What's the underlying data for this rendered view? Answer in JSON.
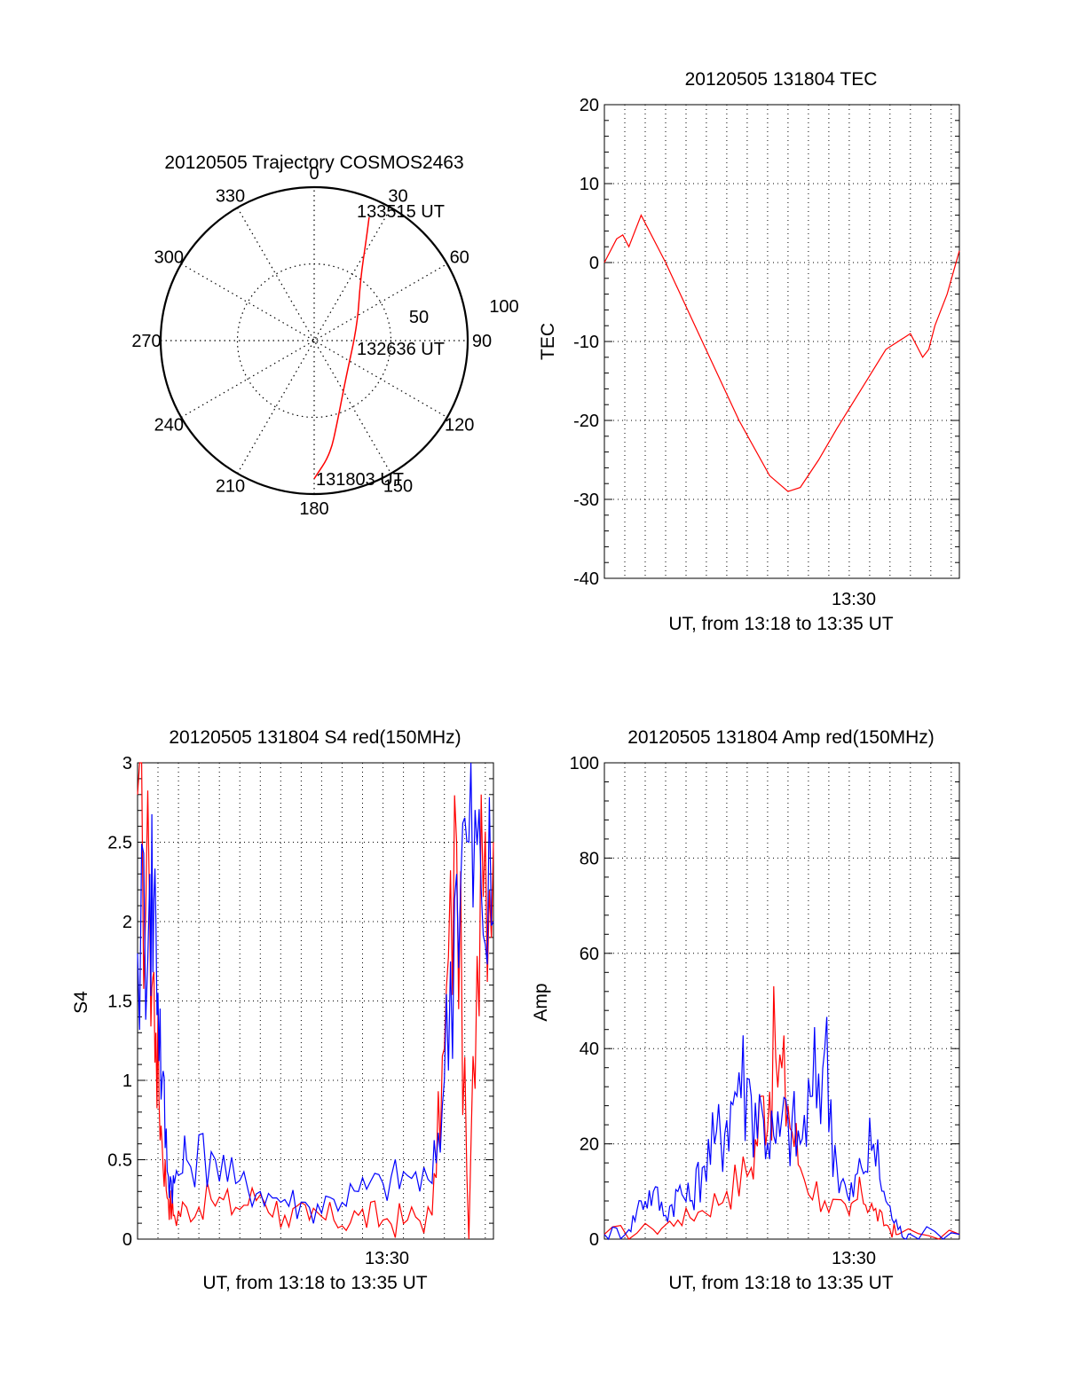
{
  "chart_data": [
    {
      "type": "polar",
      "title": "20120505 Trajectory COSMOS2463",
      "angle_labels": [
        "0",
        "30",
        "60",
        "90",
        "120",
        "150",
        "180",
        "210",
        "240",
        "270",
        "300",
        "330"
      ],
      "radius_labels": [
        "50",
        "100"
      ],
      "rlim": [
        0,
        100
      ],
      "grid": true,
      "series": [
        {
          "color": "#ff0000",
          "points": [
            {
              "az": 180,
              "r": 90
            },
            {
              "az": 172,
              "r": 75
            },
            {
              "az": 164,
              "r": 55
            },
            {
              "az": 140,
              "r": 32
            },
            {
              "az": 70,
              "r": 30
            },
            {
              "az": 37,
              "r": 50
            },
            {
              "az": 27,
              "r": 75
            },
            {
              "az": 24,
              "r": 88
            }
          ]
        }
      ],
      "annotations": [
        "133515 UT",
        "132636 UT",
        "131803 UT"
      ]
    },
    {
      "type": "line",
      "title": "20120505 131804 TEC",
      "xlabel": "UT, from 13:18 to 13:35 UT",
      "ylabel": "TEC",
      "xlim": [
        13.3,
        13.59
      ],
      "ylim": [
        -40,
        20
      ],
      "yticks": [
        "20",
        "10",
        "0",
        "-10",
        "-20",
        "-30",
        "-40"
      ],
      "xticks": [
        {
          "x": 13.5,
          "label": "13:30"
        }
      ],
      "grid": true,
      "series": [
        {
          "color": "#ff0000",
          "x": [
            13.3,
            13.31,
            13.315,
            13.32,
            13.325,
            13.33,
            13.35,
            13.38,
            13.41,
            13.435,
            13.45,
            13.46,
            13.475,
            13.49,
            13.51,
            13.53,
            13.55,
            13.56,
            13.565,
            13.57,
            13.58,
            13.59
          ],
          "y": [
            0,
            3,
            3.5,
            2,
            4,
            6,
            0,
            -10,
            -20,
            -27,
            -29,
            -28.5,
            -25,
            -21,
            -16,
            -11,
            -9,
            -12,
            -11,
            -8,
            -4,
            1.5
          ]
        }
      ]
    },
    {
      "type": "line",
      "title": "20120505 131804 S4 red(150MHz)",
      "xlabel": "UT, from 13:18 to 13:35 UT",
      "ylabel": "S4",
      "xlim": [
        13.3,
        13.59
      ],
      "ylim": [
        0,
        3
      ],
      "yticks": [
        "3",
        "2.5",
        "2",
        "1.5",
        "1",
        "0.5",
        "0"
      ],
      "xticks": [
        {
          "x": 13.5,
          "label": "13:30"
        }
      ],
      "grid": true,
      "series": [
        {
          "color": "#ff0000",
          "x": [
            13.3,
            13.31,
            13.315,
            13.32,
            13.325,
            13.33,
            13.34,
            13.36,
            13.38,
            13.4,
            13.42,
            13.44,
            13.46,
            13.48,
            13.5,
            13.52,
            13.54,
            13.55,
            13.56,
            13.57,
            13.58,
            13.59
          ],
          "y": [
            2.8,
            2.0,
            1.3,
            0.6,
            0.25,
            0.15,
            0.2,
            0.25,
            0.2,
            0.28,
            0.15,
            0.12,
            0.12,
            0.15,
            0.12,
            0.12,
            0.15,
            1.2,
            2.5,
            0,
            2.8,
            2.5
          ]
        },
        {
          "color": "#0000ff",
          "x": [
            13.3,
            13.31,
            13.315,
            13.32,
            13.325,
            13.33,
            13.34,
            13.36,
            13.38,
            13.4,
            13.42,
            13.44,
            13.46,
            13.48,
            13.5,
            13.52,
            13.54,
            13.55,
            13.56,
            13.57,
            13.58,
            13.59
          ],
          "y": [
            1.8,
            2.3,
            2.0,
            1.0,
            0.4,
            0.35,
            0.5,
            0.55,
            0.35,
            0.3,
            0.25,
            0.2,
            0.25,
            0.3,
            0.35,
            0.4,
            0.35,
            1.0,
            2.3,
            2.5,
            2.2,
            2.0
          ]
        }
      ]
    },
    {
      "type": "line",
      "title": "20120505 131804 Amp red(150MHz)",
      "xlabel": "UT, from 13:18 to 13:35 UT",
      "ylabel": "Amp",
      "xlim": [
        13.3,
        13.59
      ],
      "ylim": [
        0,
        100
      ],
      "yticks": [
        "100",
        "80",
        "60",
        "40",
        "20",
        "0"
      ],
      "xticks": [
        {
          "x": 13.5,
          "label": "13:30"
        }
      ],
      "grid": true,
      "series": [
        {
          "color": "#ff0000",
          "x": [
            13.3,
            13.34,
            13.36,
            13.38,
            13.4,
            13.42,
            13.43,
            13.44,
            13.45,
            13.46,
            13.48,
            13.5,
            13.51,
            13.52,
            13.53,
            13.54,
            13.59
          ],
          "y": [
            1,
            2,
            4,
            6,
            10,
            15,
            30,
            38,
            28,
            15,
            8,
            5,
            10,
            6,
            3,
            1,
            1
          ]
        },
        {
          "color": "#0000ff",
          "x": [
            13.3,
            13.32,
            13.33,
            13.34,
            13.35,
            13.36,
            13.37,
            13.38,
            13.39,
            13.4,
            13.41,
            13.42,
            13.43,
            13.44,
            13.45,
            13.46,
            13.47,
            13.48,
            13.49,
            13.5,
            13.51,
            13.52,
            13.53,
            13.54,
            13.55,
            13.59
          ],
          "y": [
            1,
            2,
            8,
            10,
            5,
            10,
            8,
            15,
            20,
            25,
            35,
            30,
            25,
            20,
            25,
            20,
            30,
            40,
            15,
            8,
            15,
            20,
            8,
            2,
            1,
            1
          ]
        }
      ]
    }
  ]
}
